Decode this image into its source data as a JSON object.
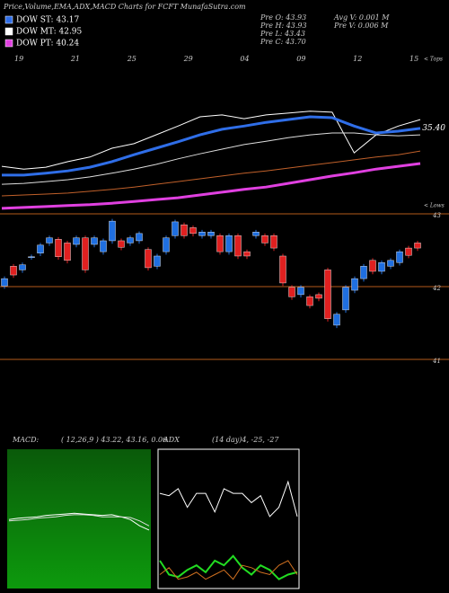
{
  "header": {
    "title": "Price,Volume,EMA,ADX,MACD Charts for FCFT MunafaSutra.com"
  },
  "legend": [
    {
      "label": "DOW ST: 43.17",
      "color": "#2f6ee8"
    },
    {
      "label": "DOW MT: 42.95",
      "color": "#ffffff"
    },
    {
      "label": "DOW PT: 40.24",
      "color": "#e040e0"
    }
  ],
  "stats": [
    "Pre  O: 43.93",
    "Pre  H: 43.93",
    "Pre  L: 43.43",
    "Pre  C: 43.70",
    "Avg  V: 0.001  M",
    "Pre  V: 0.006  M"
  ],
  "chart_data": [
    {
      "type": "line",
      "date_labels": [
        "19",
        "21",
        "25",
        "29",
        "04",
        "09",
        "12",
        "15"
      ],
      "annotations": [
        "< Tops",
        "< Lows"
      ],
      "ylim": [
        33.6,
        37.0
      ],
      "yticks": [
        {
          "value": 35.4,
          "label": "35.40"
        }
      ],
      "series": [
        {
          "color": "#ffffff",
          "width": 1,
          "values": [
            34.57,
            34.51,
            34.55,
            34.67,
            34.77,
            34.96,
            35.06,
            35.25,
            35.44,
            35.64,
            35.68,
            35.6,
            35.68,
            35.72,
            35.76,
            35.74,
            34.86,
            35.25,
            35.44,
            35.58
          ]
        },
        {
          "color": "#2f6ee8",
          "width": 3,
          "values": [
            34.38,
            34.38,
            34.42,
            34.47,
            34.55,
            34.67,
            34.82,
            34.96,
            35.1,
            35.25,
            35.37,
            35.44,
            35.52,
            35.58,
            35.64,
            35.62,
            35.44,
            35.29,
            35.33,
            35.39
          ]
        },
        {
          "color": "#dddddd",
          "width": 1,
          "values": [
            34.18,
            34.2,
            34.24,
            34.28,
            34.34,
            34.42,
            34.51,
            34.61,
            34.73,
            34.84,
            34.94,
            35.04,
            35.11,
            35.19,
            35.25,
            35.29,
            35.29,
            35.25,
            35.23,
            35.25
          ]
        },
        {
          "color": "#c0602a",
          "width": 1,
          "values": [
            33.93,
            33.95,
            33.97,
            33.99,
            34.03,
            34.07,
            34.12,
            34.18,
            34.24,
            34.3,
            34.36,
            34.42,
            34.47,
            34.53,
            34.59,
            34.65,
            34.71,
            34.77,
            34.82,
            34.9
          ]
        },
        {
          "color": "#e040e0",
          "width": 3,
          "values": [
            33.66,
            33.68,
            33.7,
            33.72,
            33.74,
            33.77,
            33.81,
            33.85,
            33.89,
            33.95,
            34.01,
            34.07,
            34.12,
            34.2,
            34.28,
            34.36,
            34.43,
            34.51,
            34.57,
            34.63
          ]
        }
      ]
    },
    {
      "type": "candlestick",
      "up_color": "#1f6fe0",
      "down_color": "#e02020",
      "grid_color": "#b55a1a",
      "ylim": [
        41,
        43
      ],
      "yticks": [
        43,
        42,
        41
      ],
      "open": [
        42.01,
        42.28,
        42.23,
        42.41,
        42.46,
        42.6,
        42.65,
        42.6,
        42.58,
        42.67,
        42.58,
        42.48,
        42.63,
        42.63,
        42.6,
        42.63,
        42.51,
        42.28,
        42.48,
        42.7,
        42.85,
        42.81,
        42.7,
        42.7,
        42.7,
        42.48,
        42.7,
        42.48,
        42.7,
        42.7,
        42.7,
        42.42,
        41.99,
        41.89,
        41.86,
        41.89,
        42.23,
        41.47,
        41.68,
        41.95,
        42.11,
        42.36,
        42.21,
        42.28,
        42.33,
        42.53,
        42.6
      ],
      "high": [
        42.14,
        42.31,
        42.33,
        42.44,
        42.6,
        42.7,
        42.68,
        42.63,
        42.7,
        42.7,
        42.7,
        42.66,
        42.93,
        42.66,
        42.7,
        42.76,
        42.54,
        42.45,
        42.7,
        42.92,
        42.88,
        42.84,
        42.78,
        42.78,
        42.73,
        42.73,
        42.73,
        42.51,
        42.78,
        42.73,
        42.73,
        42.45,
        42.02,
        42.02,
        41.89,
        41.92,
        42.26,
        41.65,
        42.02,
        42.14,
        42.31,
        42.39,
        42.36,
        42.39,
        42.51,
        42.56,
        42.63
      ],
      "low": [
        41.97,
        42.12,
        42.19,
        42.37,
        42.42,
        42.56,
        42.37,
        42.32,
        42.54,
        42.19,
        42.54,
        42.44,
        42.59,
        42.5,
        42.56,
        42.59,
        42.22,
        42.24,
        42.44,
        42.66,
        42.66,
        42.69,
        42.66,
        42.66,
        42.44,
        42.44,
        42.38,
        42.38,
        42.66,
        42.56,
        42.49,
        42.01,
        41.82,
        41.85,
        41.7,
        41.8,
        41.52,
        41.43,
        41.64,
        41.91,
        42.07,
        42.17,
        42.17,
        42.24,
        42.29,
        42.39,
        42.49
      ],
      "close": [
        42.11,
        42.16,
        42.3,
        42.41,
        42.57,
        42.67,
        42.41,
        42.36,
        42.67,
        42.23,
        42.67,
        42.63,
        42.9,
        42.54,
        42.67,
        42.73,
        42.26,
        42.42,
        42.67,
        42.89,
        42.7,
        42.73,
        42.75,
        42.75,
        42.48,
        42.7,
        42.42,
        42.42,
        42.75,
        42.6,
        42.53,
        42.05,
        41.86,
        41.99,
        41.74,
        41.84,
        41.56,
        41.62,
        41.99,
        42.11,
        42.28,
        42.21,
        42.33,
        42.36,
        42.48,
        42.43,
        42.53
      ]
    },
    {
      "type": "line",
      "label": "MACD:",
      "params": "( 12,26,9 ) 43.22, 43.16, 0.06",
      "ylim": [
        -1,
        1
      ],
      "series": [
        {
          "color": "#ffffff",
          "width": 1,
          "values": [
            -0.01,
            0.01,
            0.02,
            0.03,
            0.05,
            0.06,
            0.07,
            0.08,
            0.07,
            0.06,
            0.05,
            0.06,
            0.03,
            -0.01,
            -0.1,
            -0.16
          ]
        },
        {
          "color": "#dddddd",
          "width": 1,
          "values": [
            -0.03,
            -0.02,
            -0.01,
            0.01,
            0.02,
            0.03,
            0.05,
            0.06,
            0.06,
            0.05,
            0.03,
            0.03,
            0.03,
            0.02,
            -0.03,
            -0.1
          ]
        }
      ]
    },
    {
      "type": "line",
      "label": "ADX",
      "params": "(14  day)4, -25, -27",
      "ylim": [
        0,
        60
      ],
      "series": [
        {
          "color": "#ffffff",
          "width": 1,
          "values": [
            41,
            40,
            43,
            35,
            41,
            41,
            33,
            43,
            41,
            41,
            37,
            40,
            31,
            35,
            46,
            31
          ]
        },
        {
          "color": "#22dd22",
          "width": 2,
          "values": [
            12,
            6,
            5,
            8,
            10,
            7,
            12,
            10,
            14,
            9,
            6,
            10,
            8,
            4,
            6,
            7
          ]
        },
        {
          "color": "#d07020",
          "width": 1,
          "values": [
            6,
            9,
            4,
            5,
            7,
            4,
            6,
            8,
            4,
            10,
            9,
            7,
            6,
            10,
            12,
            6
          ]
        }
      ]
    }
  ]
}
